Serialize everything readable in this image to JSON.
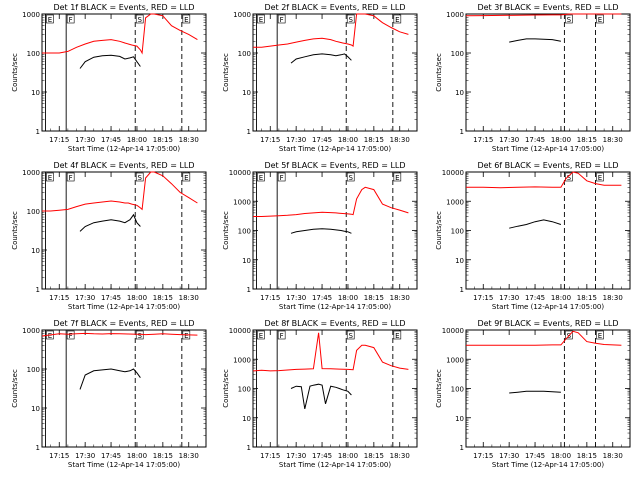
{
  "figure": {
    "ylabel": "Counts/sec",
    "xlabel_prefix": "Start Time",
    "start_time": "(12-Apr-14 17:05:00)",
    "x_ticks": [
      "17:15",
      "17:30",
      "17:45",
      "18:00",
      "18:15",
      "18:30"
    ],
    "y_ticks": [
      "1",
      "10",
      "100",
      "1000"
    ],
    "y_ticks_wide": [
      "1",
      "10",
      "100",
      "1000",
      "10000"
    ],
    "marker_labels": [
      "E",
      "F",
      "S",
      "E",
      "F",
      "E",
      "F",
      "S",
      "E",
      "F",
      "S",
      "E",
      "F",
      "S",
      "E",
      "F",
      "S",
      "E",
      "F",
      "S",
      "E",
      "F",
      "S",
      "E"
    ],
    "colors": {
      "events": "#000000",
      "lld": "#ff0000"
    }
  },
  "chart_data": [
    {
      "type": "line",
      "title": "Det 1f BLACK = Events, RED = LLD",
      "xlabel": "Start Time (12-Apr-14 17:05:00)",
      "ylabel": "Counts/sec",
      "ylim": [
        1,
        1000
      ],
      "log_y": true,
      "markers": [
        {
          "label": "E",
          "x": "17:07",
          "style": "solid"
        },
        {
          "label": "F",
          "x": "17:19",
          "style": "solid"
        },
        {
          "label": "S",
          "x": "17:59",
          "style": "dashed"
        },
        {
          "label": "E",
          "x": "18:26",
          "style": "dashed"
        }
      ],
      "series": [
        {
          "name": "Events",
          "x_minutes": [
            22,
            25,
            30,
            35,
            40,
            45,
            48,
            51,
            53,
            55,
            57
          ],
          "values": [
            40,
            60,
            78,
            85,
            88,
            82,
            70,
            75,
            80,
            60,
            45
          ]
        },
        {
          "name": "LLD",
          "x_minutes": [
            0,
            5,
            10,
            15,
            20,
            25,
            30,
            35,
            40,
            45,
            48,
            50,
            52,
            55,
            57,
            58,
            60,
            63,
            65,
            70,
            75,
            80,
            85,
            90
          ],
          "values": [
            100,
            100,
            100,
            110,
            140,
            170,
            200,
            210,
            220,
            200,
            180,
            170,
            160,
            150,
            120,
            100,
            800,
            1000,
            1000,
            900,
            500,
            380,
            300,
            220
          ]
        }
      ]
    },
    {
      "type": "line",
      "title": "Det 2f BLACK = Events, RED = LLD",
      "xlabel": "Start Time (12-Apr-14 17:05:00)",
      "ylabel": "Counts/sec",
      "ylim": [
        1,
        1000
      ],
      "log_y": true,
      "markers": [
        {
          "label": "E",
          "x": "17:07",
          "style": "solid"
        },
        {
          "label": "F",
          "x": "17:19",
          "style": "solid"
        },
        {
          "label": "S",
          "x": "17:59",
          "style": "dashed"
        },
        {
          "label": "E",
          "x": "18:26",
          "style": "dashed"
        }
      ],
      "series": [
        {
          "name": "Events",
          "x_minutes": [
            22,
            25,
            30,
            35,
            40,
            45,
            48,
            51,
            53,
            55,
            57
          ],
          "values": [
            55,
            70,
            80,
            90,
            95,
            90,
            85,
            90,
            95,
            80,
            65
          ]
        },
        {
          "name": "LLD",
          "x_minutes": [
            0,
            5,
            10,
            15,
            20,
            25,
            30,
            35,
            40,
            45,
            48,
            50,
            52,
            55,
            57,
            58,
            60,
            63,
            65,
            70,
            75,
            80,
            85,
            90
          ],
          "values": [
            140,
            140,
            150,
            160,
            170,
            190,
            210,
            230,
            240,
            220,
            200,
            190,
            180,
            170,
            160,
            150,
            1000,
            1000,
            1000,
            900,
            600,
            450,
            350,
            300
          ]
        }
      ]
    },
    {
      "type": "line",
      "title": "Det 3f BLACK = Events, RED = LLD",
      "xlabel": "Start Time (12-Apr-14 17:05:00)",
      "ylabel": "Counts/sec",
      "ylim": [
        1,
        1000
      ],
      "log_y": true,
      "markers": [
        {
          "label": "S",
          "x": "18:02",
          "style": "dashed"
        },
        {
          "label": "E",
          "x": "18:20",
          "style": "dashed"
        }
      ],
      "series": [
        {
          "name": "Events",
          "x_minutes": [
            25,
            30,
            35,
            40,
            45,
            50,
            55
          ],
          "values": [
            190,
            210,
            230,
            230,
            225,
            220,
            200
          ]
        },
        {
          "name": "LLD",
          "x_minutes": [
            0,
            10,
            20,
            30,
            40,
            50,
            55,
            60,
            65,
            70,
            80,
            90
          ],
          "values": [
            900,
            910,
            920,
            930,
            940,
            950,
            950,
            1000,
            1000,
            1000,
            1000,
            1000
          ]
        }
      ]
    },
    {
      "type": "line",
      "title": "Det 4f BLACK = Events, RED = LLD",
      "xlabel": "Start Time (12-Apr-14 17:05:00)",
      "ylabel": "Counts/sec",
      "ylim": [
        1,
        1000
      ],
      "log_y": true,
      "markers": [
        {
          "label": "E",
          "x": "17:07",
          "style": "solid"
        },
        {
          "label": "F",
          "x": "17:19",
          "style": "solid"
        },
        {
          "label": "S",
          "x": "17:59",
          "style": "dashed"
        },
        {
          "label": "E",
          "x": "18:26",
          "style": "dashed"
        }
      ],
      "series": [
        {
          "name": "Events",
          "x_minutes": [
            22,
            25,
            30,
            35,
            40,
            45,
            48,
            51,
            53,
            55,
            57
          ],
          "values": [
            30,
            40,
            50,
            55,
            60,
            55,
            50,
            60,
            80,
            50,
            40
          ]
        },
        {
          "name": "LLD",
          "x_minutes": [
            0,
            5,
            10,
            15,
            20,
            25,
            30,
            35,
            40,
            45,
            48,
            50,
            52,
            55,
            57,
            58,
            60,
            63,
            65,
            70,
            75,
            80,
            85,
            90
          ],
          "values": [
            100,
            100,
            105,
            110,
            130,
            150,
            160,
            170,
            180,
            170,
            160,
            160,
            150,
            140,
            120,
            110,
            700,
            1000,
            1000,
            800,
            500,
            300,
            220,
            160
          ]
        }
      ]
    },
    {
      "type": "line",
      "title": "Det 5f BLACK = Events, RED = LLD",
      "xlabel": "Start Time (12-Apr-14 17:05:00)",
      "ylabel": "Counts/sec",
      "ylim": [
        1,
        10000
      ],
      "log_y": true,
      "markers": [
        {
          "label": "E",
          "x": "17:07",
          "style": "solid"
        },
        {
          "label": "F",
          "x": "17:19",
          "style": "solid"
        },
        {
          "label": "S",
          "x": "17:59",
          "style": "dashed"
        },
        {
          "label": "E",
          "x": "18:26",
          "style": "dashed"
        }
      ],
      "series": [
        {
          "name": "Events",
          "x_minutes": [
            22,
            25,
            30,
            35,
            40,
            45,
            48,
            51,
            53,
            55,
            57
          ],
          "values": [
            80,
            90,
            100,
            110,
            115,
            110,
            105,
            100,
            95,
            90,
            80
          ]
        },
        {
          "name": "LLD",
          "x_minutes": [
            0,
            5,
            10,
            15,
            20,
            25,
            30,
            35,
            40,
            45,
            48,
            50,
            52,
            55,
            57,
            58,
            60,
            63,
            65,
            70,
            75,
            80,
            85,
            90
          ],
          "values": [
            300,
            300,
            310,
            320,
            330,
            350,
            380,
            400,
            420,
            410,
            400,
            390,
            380,
            370,
            360,
            350,
            1200,
            2500,
            3000,
            2500,
            800,
            600,
            500,
            400
          ]
        }
      ]
    },
    {
      "type": "line",
      "title": "Det 6f BLACK = Events, RED = LLD",
      "xlabel": "Start Time (12-Apr-14 17:05:00)",
      "ylabel": "Counts/sec",
      "ylim": [
        1,
        10000
      ],
      "log_y": true,
      "markers": [
        {
          "label": "S",
          "x": "18:02",
          "style": "dashed"
        },
        {
          "label": "E",
          "x": "18:20",
          "style": "dashed"
        }
      ],
      "series": [
        {
          "name": "Events",
          "x_minutes": [
            25,
            30,
            35,
            40,
            45,
            50,
            55
          ],
          "values": [
            120,
            140,
            160,
            200,
            230,
            200,
            160
          ]
        },
        {
          "name": "LLD",
          "x_minutes": [
            0,
            10,
            20,
            30,
            40,
            50,
            55,
            58,
            62,
            65,
            70,
            75,
            80,
            90
          ],
          "values": [
            3000,
            3000,
            2900,
            3000,
            3100,
            3000,
            3000,
            6000,
            10000,
            9000,
            5000,
            4000,
            3500,
            3500
          ]
        }
      ]
    },
    {
      "type": "line",
      "title": "Det 7f BLACK = Events, RED = LLD",
      "xlabel": "Start Time (12-Apr-14 17:05:00)",
      "ylabel": "Counts/sec",
      "ylim": [
        1,
        1000
      ],
      "log_y": true,
      "markers": [
        {
          "label": "E",
          "x": "17:07",
          "style": "solid"
        },
        {
          "label": "F",
          "x": "17:19",
          "style": "solid"
        },
        {
          "label": "S",
          "x": "17:59",
          "style": "dashed"
        },
        {
          "label": "E",
          "x": "18:26",
          "style": "dashed"
        }
      ],
      "series": [
        {
          "name": "Events",
          "x_minutes": [
            22,
            25,
            30,
            35,
            40,
            45,
            48,
            51,
            53,
            55,
            57
          ],
          "values": [
            30,
            70,
            90,
            95,
            100,
            90,
            85,
            90,
            100,
            80,
            60
          ]
        },
        {
          "name": "LLD",
          "x_minutes": [
            0,
            5,
            10,
            15,
            20,
            25,
            30,
            35,
            40,
            45,
            50,
            55,
            58,
            60,
            65,
            70,
            75,
            80,
            85,
            90
          ],
          "values": [
            700,
            750,
            800,
            780,
            800,
            820,
            800,
            790,
            810,
            800,
            790,
            780,
            770,
            760,
            780,
            800,
            780,
            760,
            750,
            740
          ]
        }
      ]
    },
    {
      "type": "line",
      "title": "Det 8f BLACK = Events, RED = LLD",
      "xlabel": "Start Time (12-Apr-14 17:05:00)",
      "ylabel": "Counts/sec",
      "ylim": [
        1,
        10000
      ],
      "log_y": true,
      "markers": [
        {
          "label": "E",
          "x": "17:07",
          "style": "solid"
        },
        {
          "label": "F",
          "x": "17:19",
          "style": "solid"
        },
        {
          "label": "S",
          "x": "17:59",
          "style": "dashed"
        },
        {
          "label": "E",
          "x": "18:26",
          "style": "dashed"
        }
      ],
      "series": [
        {
          "name": "Events",
          "x_minutes": [
            22,
            25,
            28,
            30,
            33,
            35,
            38,
            40,
            42,
            45,
            48,
            50,
            52,
            55,
            57
          ],
          "values": [
            100,
            120,
            115,
            20,
            120,
            130,
            140,
            130,
            30,
            120,
            110,
            100,
            90,
            80,
            60
          ]
        },
        {
          "name": "LLD",
          "x_minutes": [
            0,
            5,
            10,
            15,
            20,
            25,
            30,
            35,
            38,
            40,
            45,
            50,
            55,
            58,
            60,
            63,
            65,
            70,
            75,
            80,
            85,
            90
          ],
          "values": [
            400,
            420,
            400,
            410,
            430,
            450,
            460,
            470,
            8000,
            480,
            470,
            460,
            450,
            440,
            2000,
            3000,
            3000,
            2500,
            800,
            600,
            500,
            450
          ]
        }
      ]
    },
    {
      "type": "line",
      "title": "Det 9f BLACK = Events, RED = LLD",
      "xlabel": "Start Time (12-Apr-14 17:05:00)",
      "ylabel": "Counts/sec",
      "ylim": [
        1,
        10000
      ],
      "log_y": true,
      "markers": [
        {
          "label": "S",
          "x": "18:02",
          "style": "dashed"
        },
        {
          "label": "E",
          "x": "18:20",
          "style": "dashed"
        }
      ],
      "series": [
        {
          "name": "Events",
          "x_minutes": [
            25,
            30,
            35,
            40,
            45,
            50,
            55
          ],
          "values": [
            70,
            75,
            80,
            80,
            80,
            78,
            75
          ]
        },
        {
          "name": "LLD",
          "x_minutes": [
            0,
            10,
            20,
            30,
            40,
            50,
            55,
            58,
            62,
            65,
            70,
            75,
            80,
            90
          ],
          "values": [
            3000,
            3000,
            3000,
            3000,
            3000,
            3100,
            3100,
            5000,
            9000,
            8000,
            4000,
            3500,
            3200,
            3000
          ]
        }
      ]
    }
  ]
}
